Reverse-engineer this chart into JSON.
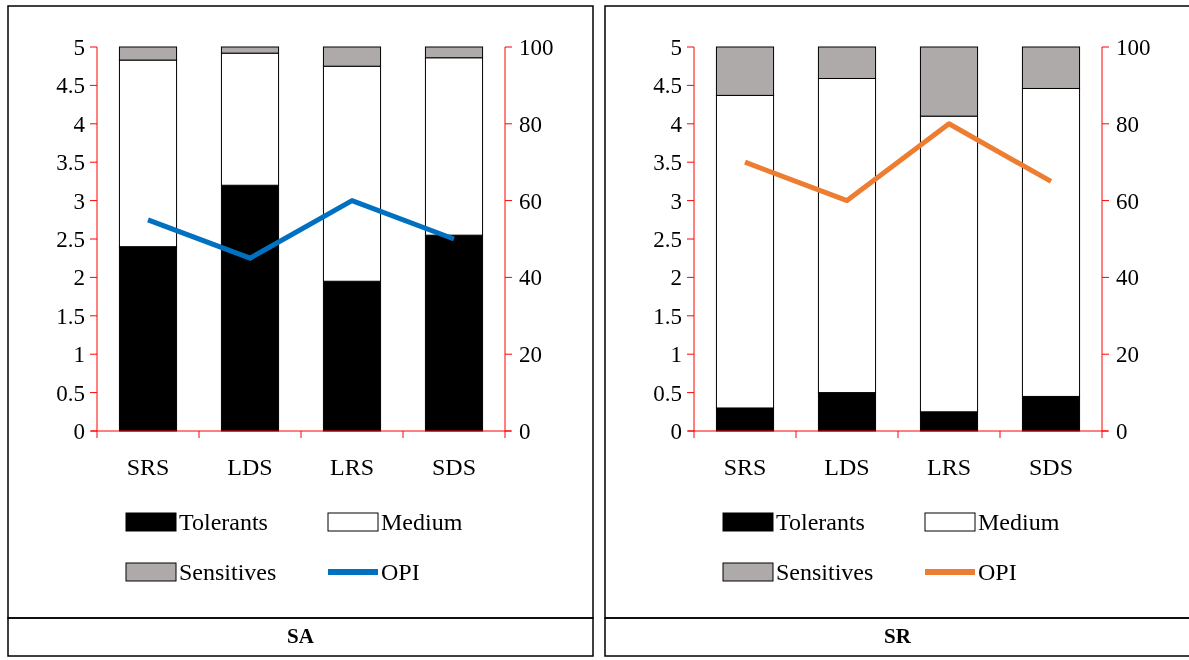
{
  "chart_data": [
    {
      "type": "bar",
      "title": "SA",
      "stacked": true,
      "legend": "bottom",
      "categories": [
        "SRS",
        "LDS",
        "LRS",
        "SDS"
      ],
      "ylim": [
        0,
        5
      ],
      "yticks": [
        0,
        0.5,
        1,
        1.5,
        2,
        2.5,
        3,
        3.5,
        4,
        4.5,
        5
      ],
      "y2lim": [
        0,
        100
      ],
      "y2ticks": [
        0,
        20,
        40,
        60,
        80,
        100
      ],
      "series": [
        {
          "name": "Tolerants",
          "color": "#000000",
          "values": [
            2.4,
            3.2,
            1.95,
            2.55
          ]
        },
        {
          "name": "Medium",
          "color": "#ffffff",
          "values": [
            2.43,
            1.72,
            2.8,
            2.31
          ]
        },
        {
          "name": "Sensitives",
          "color": "#aeaaaa",
          "values": [
            0.17,
            0.08,
            0.25,
            0.14
          ]
        },
        {
          "name": "OPI",
          "type": "line",
          "axis": "y2",
          "color": "#0070c0",
          "values": [
            55,
            45,
            60,
            50
          ]
        }
      ]
    },
    {
      "type": "bar",
      "title": "SR",
      "stacked": true,
      "legend": "bottom",
      "categories": [
        "SRS",
        "LDS",
        "LRS",
        "SDS"
      ],
      "ylim": [
        0,
        5
      ],
      "yticks": [
        0,
        0.5,
        1,
        1.5,
        2,
        2.5,
        3,
        3.5,
        4,
        4.5,
        5
      ],
      "y2lim": [
        0,
        100
      ],
      "y2ticks": [
        0,
        20,
        40,
        60,
        80,
        100
      ],
      "series": [
        {
          "name": "Tolerants",
          "color": "#000000",
          "values": [
            0.3,
            0.5,
            0.25,
            0.45
          ]
        },
        {
          "name": "Medium",
          "color": "#ffffff",
          "values": [
            4.07,
            4.09,
            3.85,
            4.01
          ]
        },
        {
          "name": "Sensitives",
          "color": "#aeaaaa",
          "values": [
            0.63,
            0.41,
            0.9,
            0.54
          ]
        },
        {
          "name": "OPI",
          "type": "line",
          "axis": "y2",
          "color": "#ed7d31",
          "values": [
            70,
            60,
            80,
            65
          ]
        }
      ]
    }
  ]
}
